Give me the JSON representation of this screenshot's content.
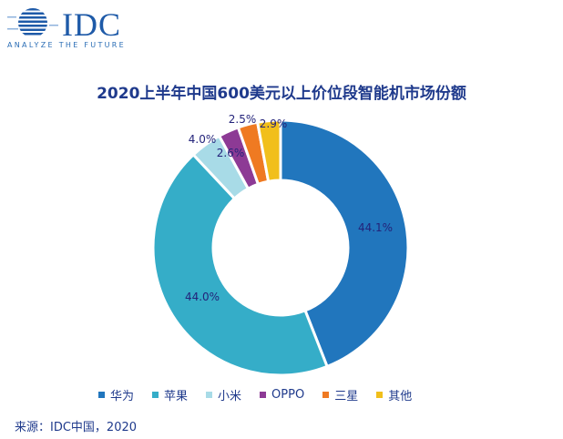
{
  "logo": {
    "name": "IDC",
    "tagline": "ANALYZE THE FUTURE"
  },
  "chart_data": {
    "type": "pie",
    "donut": true,
    "title": "2020上半年中国600美元以上价位段智能机市场份额",
    "categories": [
      "华为",
      "苹果",
      "小米",
      "OPPO",
      "三星",
      "其他"
    ],
    "values": [
      44.1,
      44.0,
      4.0,
      2.6,
      2.5,
      2.9
    ],
    "labels": [
      "44.1%",
      "44.0%",
      "4.0%",
      "2.6%",
      "2.5%",
      "2.9%"
    ],
    "colors": [
      "#2176bd",
      "#35adc8",
      "#a8dbe7",
      "#8d3a95",
      "#ef7a22",
      "#f1bf1b"
    ],
    "legend_position": "bottom"
  },
  "source": "来源：IDC中国，2020"
}
